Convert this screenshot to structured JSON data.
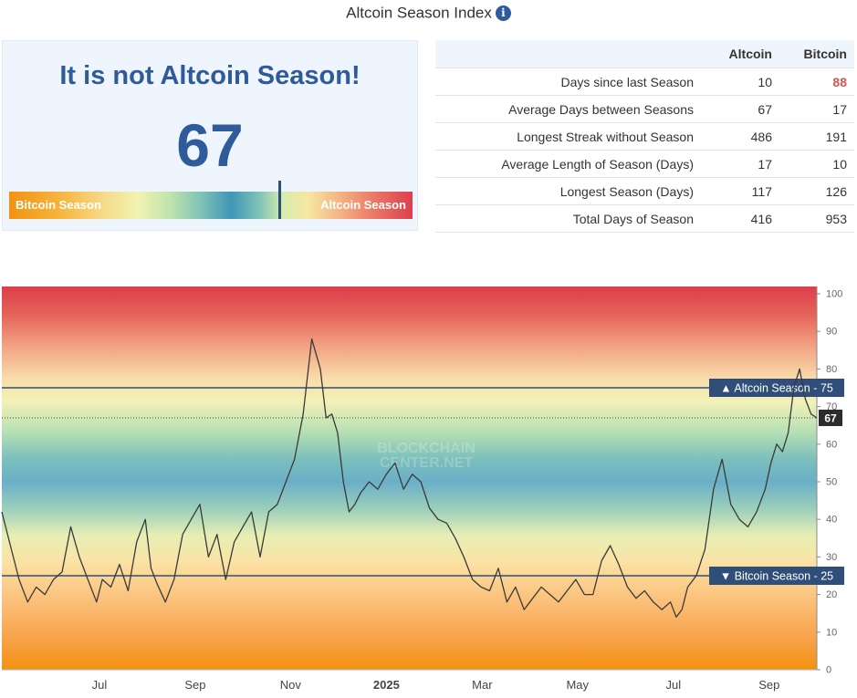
{
  "title": "Altcoin Season Index",
  "status": {
    "heading": "It is not Altcoin Season!",
    "value": 67,
    "bar": {
      "left_label": "Bitcoin Season",
      "right_label": "Altcoin Season",
      "marker_value": 67
    }
  },
  "stats": {
    "columns": [
      "Altcoin",
      "Bitcoin"
    ],
    "rows": [
      {
        "label": "Days since last Season",
        "altcoin": "10",
        "bitcoin": "88",
        "bitcoin_highlight": true
      },
      {
        "label": "Average Days between Seasons",
        "altcoin": "67",
        "bitcoin": "17"
      },
      {
        "label": "Longest Streak without Season",
        "altcoin": "486",
        "bitcoin": "191"
      },
      {
        "label": "Average Length of Season (Days)",
        "altcoin": "17",
        "bitcoin": "10"
      },
      {
        "label": "Longest Season (Days)",
        "altcoin": "117",
        "bitcoin": "126"
      },
      {
        "label": "Total Days of Season",
        "altcoin": "416",
        "bitcoin": "953"
      }
    ],
    "highlight_color": "#d9534f"
  },
  "chart_data": {
    "type": "line",
    "x_axis": {
      "ticks": [
        "Jul",
        "Sep",
        "Nov",
        "2025",
        "Mar",
        "May",
        "Jul",
        "Sep"
      ],
      "tick_positions": [
        2024.5,
        2024.667,
        2024.833,
        2025.0,
        2025.167,
        2025.333,
        2025.5,
        2025.667
      ],
      "range": [
        2024.33,
        2025.75
      ]
    },
    "y_axis": {
      "ticks": [
        0,
        10,
        20,
        30,
        40,
        50,
        60,
        70,
        80,
        90,
        100
      ],
      "range": [
        0,
        100
      ],
      "position": "right"
    },
    "thresholds": [
      {
        "label": "▲ Altcoin Season - 75",
        "value": 75
      },
      {
        "label": "▼ Bitcoin Season - 25",
        "value": 25
      }
    ],
    "current_label": "67",
    "current_value": 67,
    "line_color": "#3a3a3a",
    "threshold_color": "#2f4f7a",
    "watermark_lines": [
      "BLOCKCHAIN",
      "CENTER.NET"
    ],
    "series": [
      {
        "x": [
          2024.33,
          2024.345,
          2024.36,
          2024.375,
          2024.39,
          2024.405,
          2024.42,
          2024.435,
          2024.45,
          2024.465,
          2024.48,
          2024.495,
          2024.505,
          2024.52,
          2024.535,
          2024.55,
          2024.565,
          2024.58,
          2024.59,
          2024.6,
          2024.615,
          2024.63,
          2024.645,
          2024.66,
          2024.675,
          2024.69,
          2024.705,
          2024.72,
          2024.735,
          2024.75,
          2024.765,
          2024.78,
          2024.795,
          2024.81,
          2024.825,
          2024.84,
          2024.855,
          2024.87,
          2024.885,
          2024.895,
          2024.905,
          2024.915,
          2024.925,
          2024.935,
          2024.945,
          2024.955,
          2024.97,
          2024.985,
          2025.0,
          2025.015,
          2025.03,
          2025.045,
          2025.06,
          2025.075,
          2025.09,
          2025.105,
          2025.12,
          2025.135,
          2025.15,
          2025.165,
          2025.18,
          2025.195,
          2025.21,
          2025.225,
          2025.24,
          2025.255,
          2025.27,
          2025.285,
          2025.3,
          2025.315,
          2025.33,
          2025.345,
          2025.36,
          2025.375,
          2025.39,
          2025.405,
          2025.42,
          2025.435,
          2025.45,
          2025.465,
          2025.48,
          2025.495,
          2025.505,
          2025.515,
          2025.525,
          2025.54,
          2025.555,
          2025.57,
          2025.585,
          2025.6,
          2025.615,
          2025.63,
          2025.645,
          2025.66,
          2025.67,
          2025.68,
          2025.69,
          2025.7,
          2025.71,
          2025.72,
          2025.73,
          2025.74,
          2025.75
        ],
        "y": [
          42,
          33,
          24,
          18,
          22,
          20,
          24,
          26,
          38,
          30,
          24,
          18,
          24,
          22,
          28,
          21,
          34,
          40,
          27,
          23,
          18,
          24,
          36,
          40,
          44,
          30,
          36,
          24,
          34,
          38,
          42,
          30,
          42,
          44,
          50,
          56,
          68,
          88,
          80,
          67,
          68,
          63,
          50,
          42,
          44,
          47,
          50,
          48,
          52,
          55,
          48,
          52,
          50,
          43,
          40,
          39,
          35,
          30,
          24,
          22,
          21,
          27,
          18,
          22,
          16,
          19,
          22,
          20,
          18,
          21,
          24,
          20,
          20,
          29,
          33,
          28,
          22,
          19,
          21,
          18,
          16,
          18,
          14,
          16,
          22,
          25,
          32,
          48,
          56,
          44,
          40,
          38,
          42,
          48,
          55,
          60,
          58,
          63,
          75,
          80,
          72,
          68,
          67
        ]
      }
    ]
  }
}
